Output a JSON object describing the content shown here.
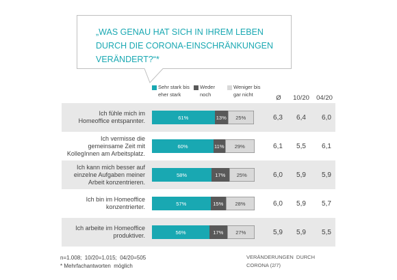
{
  "colors": {
    "accent": "#19a8b2",
    "row_band": "#e8e8e8",
    "text": "#404040",
    "bubble_border": "#bfbfbf",
    "footer_text": "#595959"
  },
  "chart_data": {
    "type": "bar",
    "orientation": "horizontal",
    "stacked": true,
    "title": "„WAS GENAU HAT SICH IN IHREM LEBEN\nDURCH DIE CORONA-EINSCHRÄNKUNGEN\nVERÄNDERT?“*",
    "categories": [
      "Ich fühle mich im\nHomeoffice entspannter.",
      "Ich vermisse die\ngemeinsame Zeit mit\nKollegInnen am Arbeitsplatz.",
      "Ich kann mich besser auf\neinzelne Aufgaben meiner\nArbeit konzentrieren.",
      "Ich bin im Homeoffice\nkonzentrierter.",
      "Ich arbeite im Homeoffice\nproduktiver."
    ],
    "series": [
      {
        "name": "Sehr stark bis\neher stark",
        "values": [
          61,
          60,
          58,
          57,
          56
        ],
        "color": "#19a8b2"
      },
      {
        "name": "Weder\nnoch",
        "values": [
          13,
          11,
          17,
          15,
          17
        ],
        "color": "#595959"
      },
      {
        "name": "Weniger bis\ngar nicht",
        "values": [
          25,
          29,
          25,
          28,
          27
        ],
        "color": "#d9d9d9"
      }
    ],
    "unit": "%",
    "xlim": [
      0,
      100
    ],
    "legend_position": "top",
    "grid": false,
    "side_table": {
      "headers": [
        "Ø",
        "10/20",
        "04/20"
      ],
      "rows": [
        [
          "6,3",
          "6,4",
          "6,0"
        ],
        [
          "6,1",
          "5,5",
          "6,1"
        ],
        [
          "6,0",
          "5,9",
          "5,9"
        ],
        [
          "6,0",
          "5,9",
          "5,7"
        ],
        [
          "5,9",
          "5,9",
          "5,5"
        ]
      ]
    }
  },
  "footer": {
    "sample": "n=1.008;  10/20=1.015;  04/20=505",
    "note": "* Mehrfachantworten  möglich",
    "section": "VERÄNDERUNGEN  DURCH\nCORONA (2/7)"
  }
}
